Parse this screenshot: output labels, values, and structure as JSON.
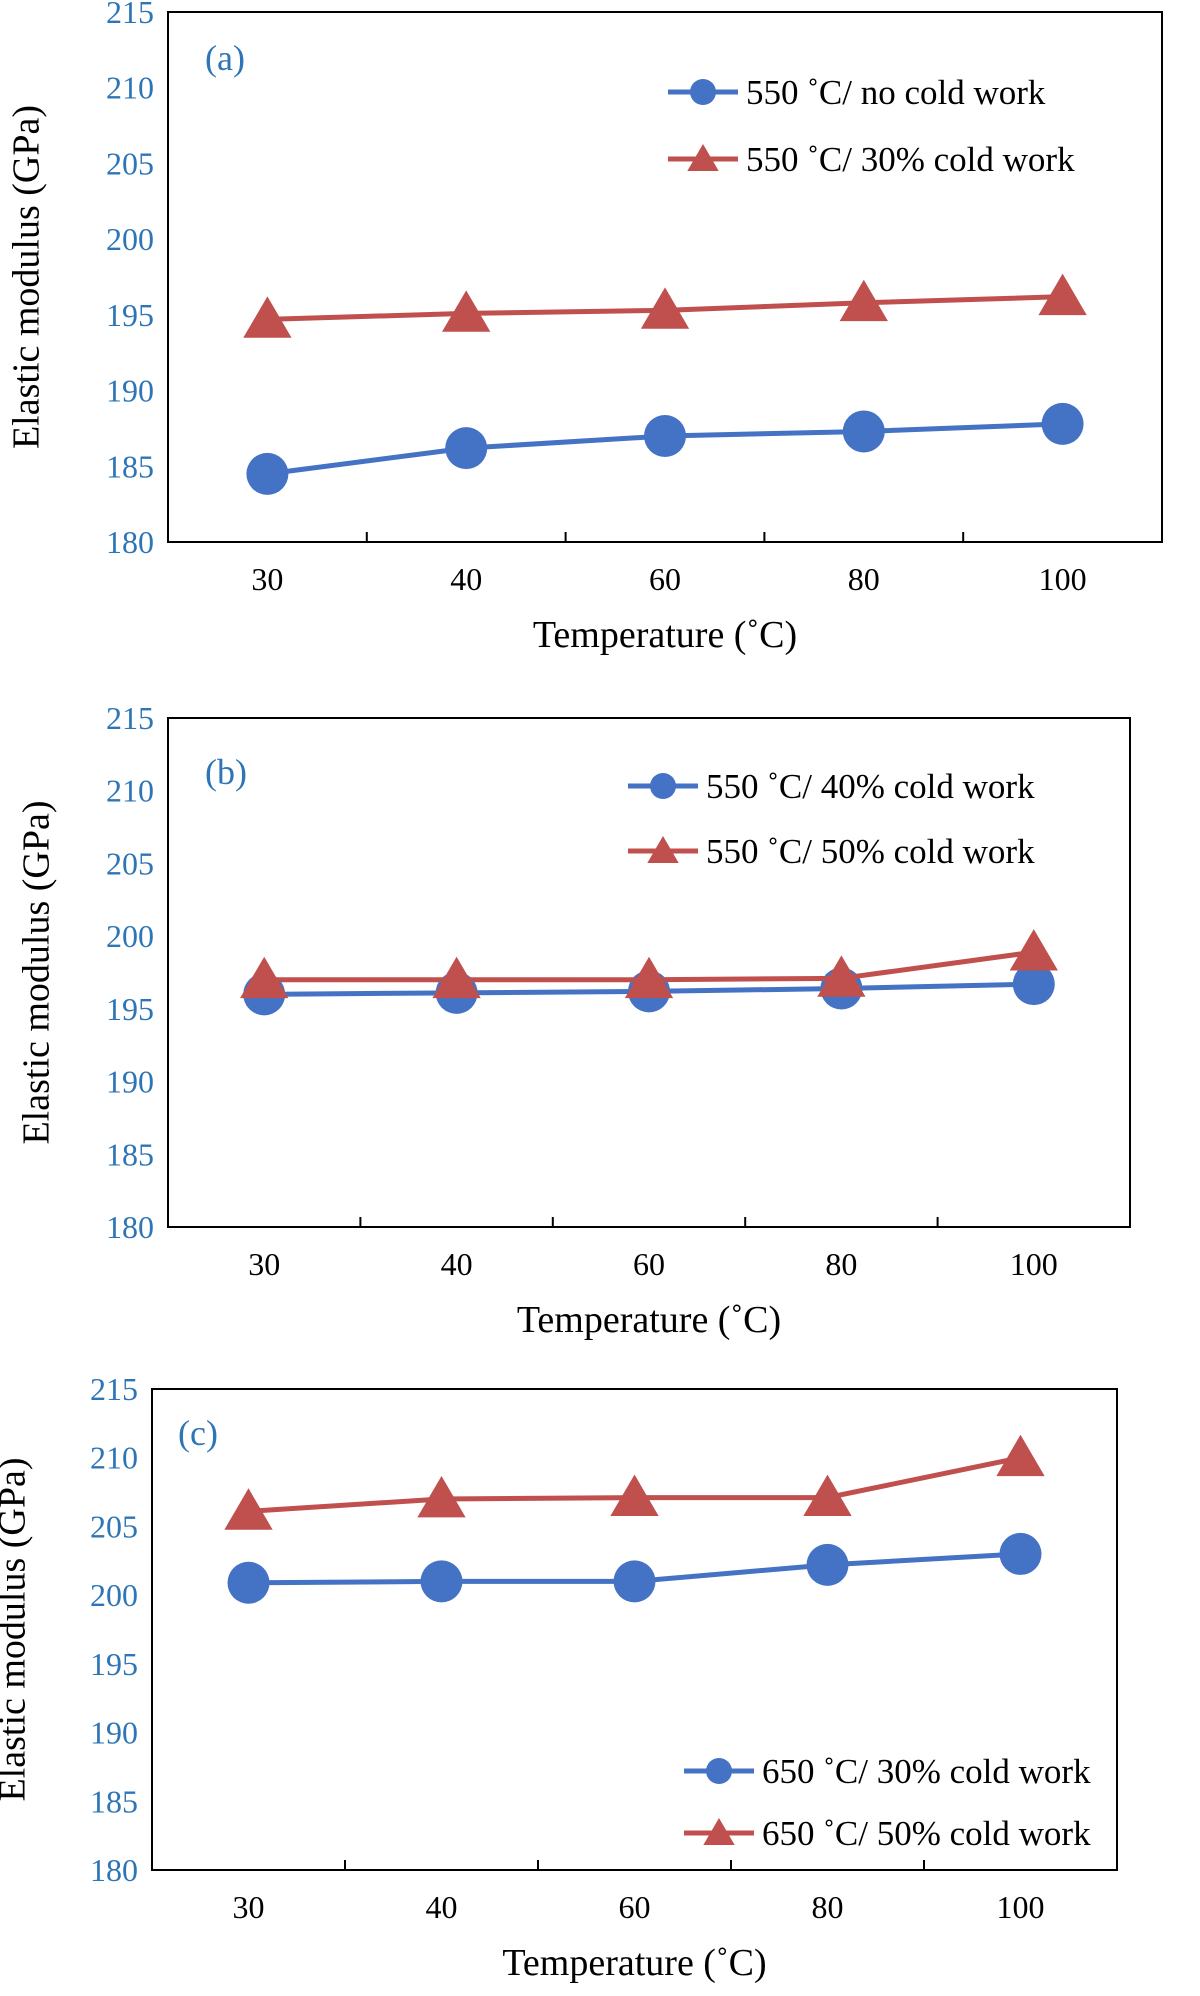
{
  "chart_data": [
    {
      "type": "line",
      "panel_label": "(a)",
      "categories": [
        "30",
        "40",
        "60",
        "80",
        "100"
      ],
      "xlabel": "Temperature (˚C)",
      "ylabel": "Elastic modulus (GPa)",
      "ylim": [
        180,
        215
      ],
      "yticks": [
        "180",
        "185",
        "190",
        "195",
        "200",
        "205",
        "210",
        "215"
      ],
      "legend_position": "top-right",
      "grid": false,
      "series": [
        {
          "name": "550 ˚C/ no cold work",
          "marker": "circle",
          "color": "#4472c4",
          "values": [
            184.5,
            186.2,
            187.0,
            187.3,
            187.8
          ]
        },
        {
          "name": "550 ˚C/ 30% cold work",
          "marker": "triangle",
          "color": "#c0504d",
          "values": [
            194.7,
            195.1,
            195.3,
            195.8,
            196.2
          ]
        }
      ]
    },
    {
      "type": "line",
      "panel_label": "(b)",
      "categories": [
        "30",
        "40",
        "60",
        "80",
        "100"
      ],
      "xlabel": "Temperature (˚C)",
      "ylabel": "Elastic modulus (GPa)",
      "ylim": [
        180,
        215
      ],
      "yticks": [
        "180",
        "185",
        "190",
        "195",
        "200",
        "205",
        "210",
        "215"
      ],
      "legend_position": "top-right",
      "grid": false,
      "series": [
        {
          "name": "550 ˚C/ 40% cold work",
          "marker": "circle",
          "color": "#4472c4",
          "values": [
            196.0,
            196.1,
            196.2,
            196.4,
            196.7
          ]
        },
        {
          "name": "550 ˚C/ 50% cold work",
          "marker": "triangle",
          "color": "#c0504d",
          "values": [
            197.0,
            197.0,
            197.0,
            197.1,
            198.9
          ]
        }
      ]
    },
    {
      "type": "line",
      "panel_label": "(c)",
      "categories": [
        "30",
        "40",
        "60",
        "80",
        "100"
      ],
      "xlabel": "Temperature (˚C)",
      "ylabel": "Elastic modulus (GPa)",
      "ylim": [
        180,
        215
      ],
      "yticks": [
        "180",
        "185",
        "190",
        "195",
        "200",
        "205",
        "210",
        "215"
      ],
      "legend_position": "bottom-right",
      "grid": false,
      "series": [
        {
          "name": "650 ˚C/ 30% cold work",
          "marker": "circle",
          "color": "#4472c4",
          "values": [
            200.9,
            201.0,
            201.0,
            202.2,
            203.0
          ]
        },
        {
          "name": "650 ˚C/ 50% cold work",
          "marker": "triangle",
          "color": "#c0504d",
          "values": [
            206.1,
            207.0,
            207.1,
            207.1,
            210.0
          ]
        }
      ]
    }
  ]
}
